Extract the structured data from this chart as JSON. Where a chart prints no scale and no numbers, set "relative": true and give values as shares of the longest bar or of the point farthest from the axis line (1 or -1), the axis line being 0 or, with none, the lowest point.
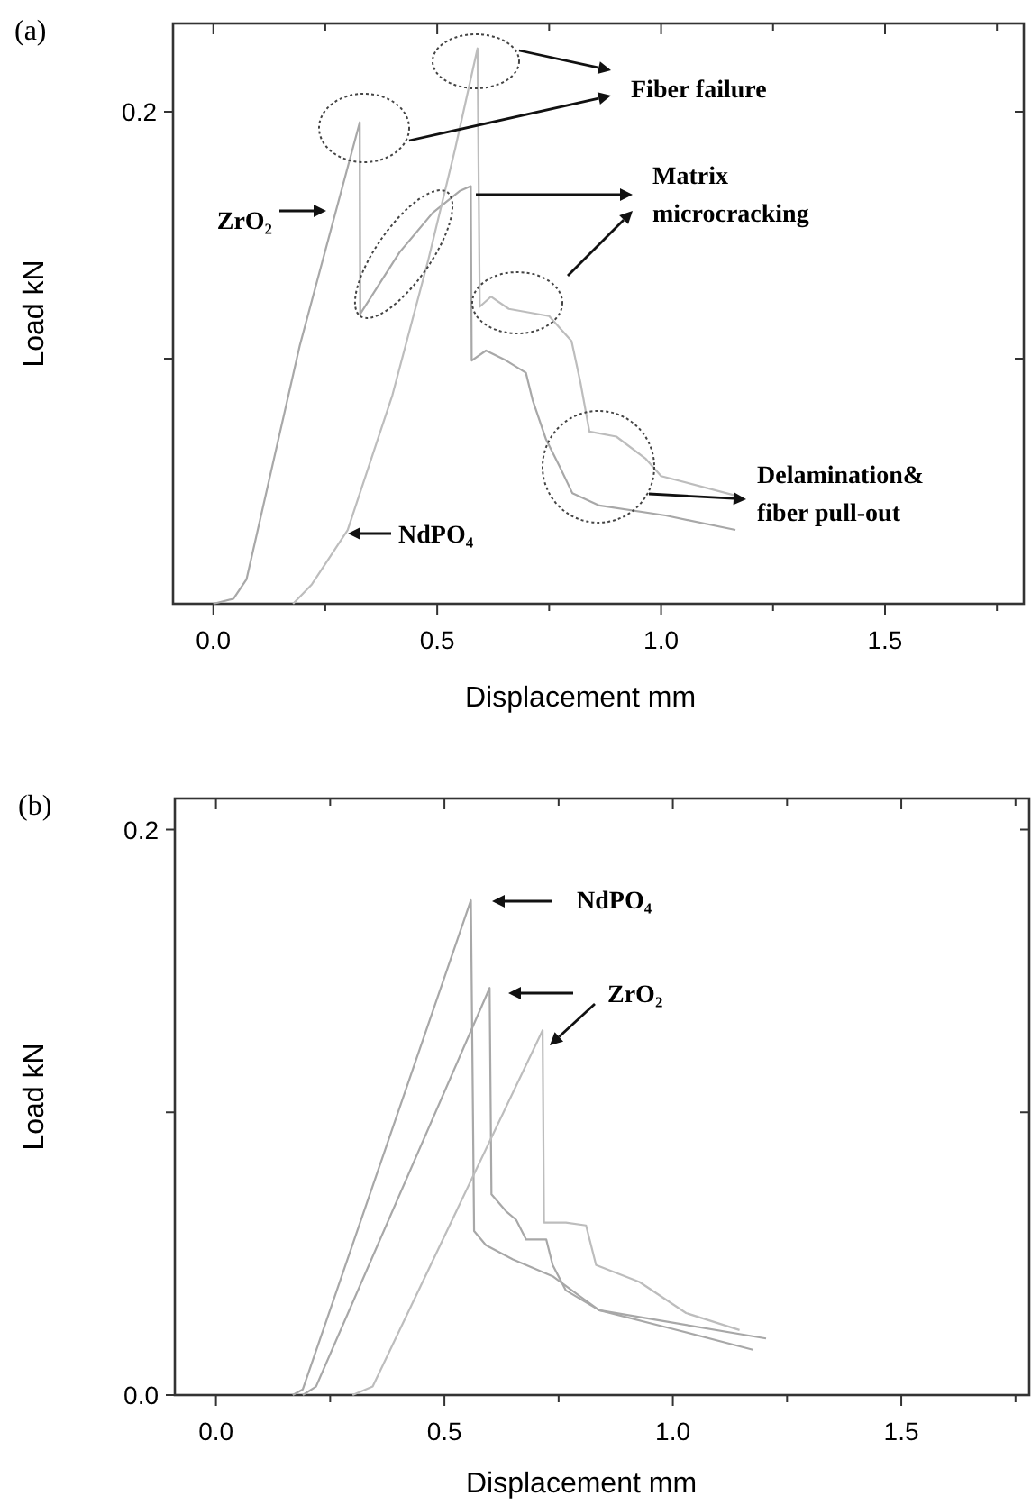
{
  "chart_data": [
    {
      "type": "line",
      "title": "(a)",
      "xlabel": "Displacement mm",
      "ylabel": "Load kN",
      "xlim": [
        -0.09,
        1.81
      ],
      "relative": true,
      "xticks": [
        {
          "value": 0,
          "label": "0.0"
        },
        {
          "value": 0.25,
          "label": null
        },
        {
          "value": 0.5,
          "label": "0.5"
        },
        {
          "value": 0.75,
          "label": null
        },
        {
          "value": 1,
          "label": "1.0"
        },
        {
          "value": 1.25,
          "label": null
        },
        {
          "value": 1.5,
          "label": "1.5"
        },
        {
          "value": 1.75,
          "label": null
        }
      ],
      "series": [
        {
          "color": "#a8a8a8",
          "x": [
            0,
            0.045,
            0.074,
            0.193,
            0.327,
            0.328,
            0.416,
            0.49,
            0.55,
            0.575,
            0.577,
            0.609,
            0.654,
            0.698,
            0.713,
            0.743,
            0.773,
            0.802,
            0.862,
            1.01,
            1.166
          ],
          "values": [
            0,
            0.009,
            0.044,
            0.465,
            0.867,
            0.522,
            0.633,
            0.704,
            0.743,
            0.752,
            0.438,
            0.456,
            0.438,
            0.416,
            0.367,
            0.296,
            0.248,
            0.199,
            0.177,
            0.159,
            0.133
          ]
        },
        {
          "color": "#bdbdbd",
          "x": [
            0.178,
            0.22,
            0.3,
            0.4,
            0.48,
            0.54,
            0.59,
            0.595,
            0.62,
            0.66,
            0.75,
            0.8,
            0.82,
            0.84,
            0.9,
            0.966,
            1.0,
            1.166
          ],
          "values": [
            0,
            0.035,
            0.133,
            0.376,
            0.619,
            0.819,
            1,
            0.535,
            0.553,
            0.531,
            0.518,
            0.473,
            0.398,
            0.31,
            0.301,
            0.261,
            0.23,
            0.195
          ]
        }
      ],
      "annotations": [
        "ZrO₂",
        "NdPO₄",
        "Fiber failure",
        "Matrix microcracking",
        "Delamination& fiber pull-out",
        "0.2"
      ]
    },
    {
      "type": "line",
      "title": "(b)",
      "xlabel": "Displacement mm",
      "ylabel": "Load kN",
      "xlim": [
        -0.09,
        1.78
      ],
      "ylim": [
        0,
        0.211
      ],
      "xticks": [
        {
          "value": 0,
          "label": "0.0"
        },
        {
          "value": 0.25,
          "label": null
        },
        {
          "value": 0.5,
          "label": "0.5"
        },
        {
          "value": 0.75,
          "label": null
        },
        {
          "value": 1,
          "label": "1.0"
        },
        {
          "value": 1.25,
          "label": null
        },
        {
          "value": 1.5,
          "label": "1.5"
        },
        {
          "value": 1.75,
          "label": null
        }
      ],
      "yticks": [
        {
          "value": 0,
          "label": "0.0"
        },
        {
          "value": 0.1,
          "label": null
        },
        0.2
      ],
      "series": [
        {
          "color": "#a8a8a8",
          "x": [
            0.168,
            0.19,
            0.558,
            0.565,
            0.591,
            0.65,
            0.737,
            0.796,
            0.839,
            0.985,
            1.175
          ],
          "values": [
            0,
            0.002,
            0.175,
            0.058,
            0.053,
            0.048,
            0.042,
            0.035,
            0.03,
            0.024,
            0.016
          ]
        },
        {
          "color": "#a8a8a8",
          "x": [
            0.19,
            0.219,
            0.599,
            0.603,
            0.635,
            0.657,
            0.679,
            0.723,
            0.737,
            0.766,
            0.839,
            0.985,
            1.204
          ],
          "values": [
            0,
            0.003,
            0.144,
            0.071,
            0.065,
            0.062,
            0.055,
            0.055,
            0.046,
            0.037,
            0.03,
            0.026,
            0.02
          ]
        },
        {
          "color": "#bdbdbd",
          "x": [
            0.299,
            0.343,
            0.715,
            0.718,
            0.766,
            0.81,
            0.832,
            0.927,
            1.029,
            1.146
          ],
          "values": [
            0,
            0.003,
            0.129,
            0.061,
            0.061,
            0.06,
            0.046,
            0.04,
            0.029,
            0.023
          ]
        }
      ],
      "annotations": [
        "NdPO₄",
        "ZrO₂"
      ]
    }
  ]
}
